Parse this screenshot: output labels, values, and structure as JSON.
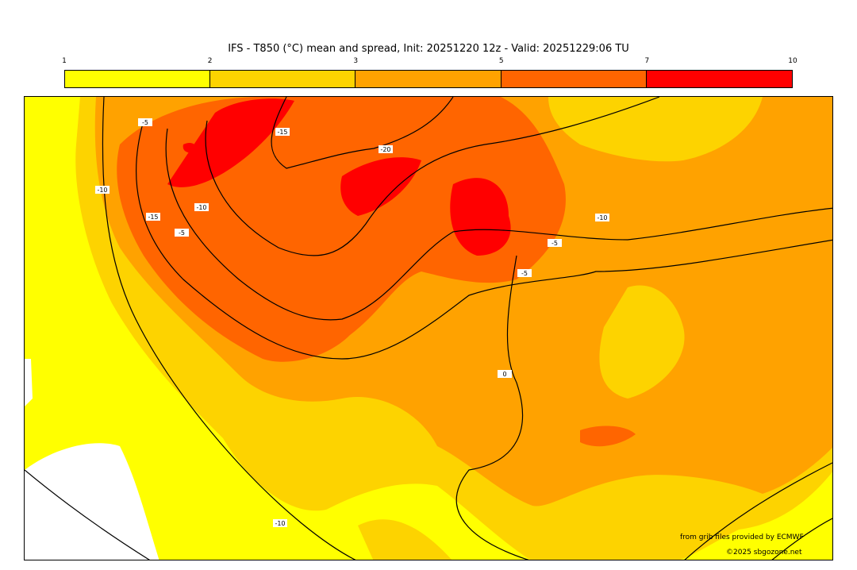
{
  "title": "IFS - T850 (°C) mean and spread, Init: 20251220 12z - Valid: 20251229:06 TU",
  "colorbar": {
    "ticks": [
      "1",
      "2",
      "3",
      "5",
      "7",
      "10"
    ],
    "bounds": [
      1,
      2,
      3,
      5,
      7,
      10
    ],
    "colors": [
      "#ffff00",
      "#fdd300",
      "#ffa200",
      "#ff6500",
      "#ff0000"
    ]
  },
  "contour_labels": [
    "-5",
    "-10",
    "-15",
    "-20",
    "-15",
    "-10",
    "-5",
    "-10",
    "-5",
    "-10",
    "0",
    "-5"
  ],
  "credits": {
    "source": "from grib files provided by ECMWF",
    "copyright": "©2025 sbgozone.net"
  }
}
